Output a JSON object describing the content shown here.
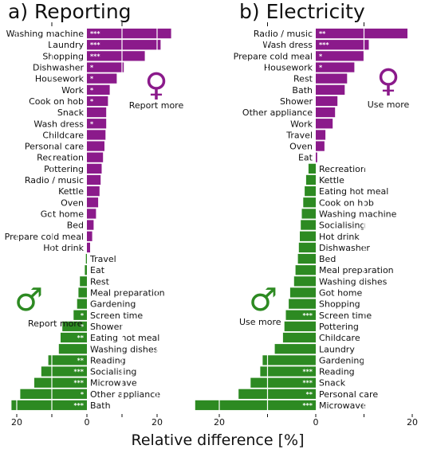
{
  "x_label": "Relative difference [%]",
  "colors": {
    "female": "#8b1a8b",
    "male": "#2d8a22"
  },
  "icons": {
    "female": "female-symbol-icon",
    "male": "male-symbol-icon"
  },
  "chart_data": [
    {
      "type": "bar",
      "title": "a) Reporting",
      "xlabel": "Relative difference [%]",
      "xlim": [
        -22,
        26
      ],
      "ticks": [
        20,
        0,
        20
      ],
      "female_label": "Report more",
      "male_label": "Report more",
      "female": [
        {
          "label": "Washing machine",
          "value": 24.0,
          "sig": "***"
        },
        {
          "label": "Laundry",
          "value": 21.0,
          "sig": "***"
        },
        {
          "label": "Shopping",
          "value": 16.5,
          "sig": "***"
        },
        {
          "label": "Dishwasher",
          "value": 10.5,
          "sig": "*"
        },
        {
          "label": "Housework",
          "value": 8.5,
          "sig": "*"
        },
        {
          "label": "Work",
          "value": 6.5,
          "sig": "*"
        },
        {
          "label": "Cook on hob",
          "value": 6.0,
          "sig": "*"
        },
        {
          "label": "Snack",
          "value": 5.5,
          "sig": ""
        },
        {
          "label": "Wash dress",
          "value": 5.5,
          "sig": "*"
        },
        {
          "label": "Childcare",
          "value": 5.3,
          "sig": ""
        },
        {
          "label": "Personal care",
          "value": 5.0,
          "sig": ""
        },
        {
          "label": "Recreation",
          "value": 4.6,
          "sig": ""
        },
        {
          "label": "Pottering",
          "value": 4.2,
          "sig": ""
        },
        {
          "label": "Radio / music",
          "value": 3.9,
          "sig": ""
        },
        {
          "label": "Kettle",
          "value": 3.6,
          "sig": ""
        },
        {
          "label": "Oven",
          "value": 3.2,
          "sig": ""
        },
        {
          "label": "Got home",
          "value": 2.6,
          "sig": ""
        },
        {
          "label": "Bed",
          "value": 1.9,
          "sig": ""
        },
        {
          "label": "Prepare cold meal",
          "value": 1.5,
          "sig": ""
        },
        {
          "label": "Hot drink",
          "value": 0.9,
          "sig": ""
        }
      ],
      "male": [
        {
          "label": "Travel",
          "value": 0.3,
          "sig": ""
        },
        {
          "label": "Eat",
          "value": 0.6,
          "sig": ""
        },
        {
          "label": "Rest",
          "value": 2.0,
          "sig": ""
        },
        {
          "label": "Meal preparation",
          "value": 2.4,
          "sig": ""
        },
        {
          "label": "Gardening",
          "value": 2.8,
          "sig": ""
        },
        {
          "label": "Screen time",
          "value": 3.8,
          "sig": "*"
        },
        {
          "label": "Shower",
          "value": 7.0,
          "sig": "*"
        },
        {
          "label": "Eating hot meal",
          "value": 7.5,
          "sig": "**"
        },
        {
          "label": "Washing dishes",
          "value": 8.0,
          "sig": ""
        },
        {
          "label": "Reading",
          "value": 11.0,
          "sig": "**"
        },
        {
          "label": "Socialising",
          "value": 13.0,
          "sig": "***"
        },
        {
          "label": "Microwave",
          "value": 15.0,
          "sig": "***"
        },
        {
          "label": "Other appliance",
          "value": 19.0,
          "sig": "*"
        },
        {
          "label": "Bath",
          "value": 21.5,
          "sig": "***"
        }
      ]
    },
    {
      "type": "bar",
      "title": "b) Electricity",
      "xlabel": "Relative difference [%]",
      "xlim": [
        -26,
        23
      ],
      "ticks": [
        20,
        0,
        20
      ],
      "female_label": "Use more",
      "male_label": "Use more",
      "female": [
        {
          "label": "Radio / music",
          "value": 19.0,
          "sig": "**"
        },
        {
          "label": "Wash dress",
          "value": 11.0,
          "sig": "***"
        },
        {
          "label": "Prepare cold meal",
          "value": 10.0,
          "sig": "*"
        },
        {
          "label": "Housework",
          "value": 8.0,
          "sig": "*"
        },
        {
          "label": "Rest",
          "value": 6.5,
          "sig": ""
        },
        {
          "label": "Bath",
          "value": 6.0,
          "sig": ""
        },
        {
          "label": "Shower",
          "value": 4.5,
          "sig": ""
        },
        {
          "label": "Other appliance",
          "value": 4.0,
          "sig": ""
        },
        {
          "label": "Work",
          "value": 3.5,
          "sig": ""
        },
        {
          "label": "Travel",
          "value": 2.0,
          "sig": ""
        },
        {
          "label": "Oven",
          "value": 1.8,
          "sig": ""
        },
        {
          "label": "Eat",
          "value": 0.3,
          "sig": ""
        }
      ],
      "male": [
        {
          "label": "Recreation",
          "value": 1.5,
          "sig": ""
        },
        {
          "label": "Kettle",
          "value": 2.0,
          "sig": ""
        },
        {
          "label": "Eating hot meal",
          "value": 2.3,
          "sig": ""
        },
        {
          "label": "Cook on hob",
          "value": 2.6,
          "sig": ""
        },
        {
          "label": "Washing machine",
          "value": 2.9,
          "sig": ""
        },
        {
          "label": "Socialising",
          "value": 3.1,
          "sig": ""
        },
        {
          "label": "Hot drink",
          "value": 3.3,
          "sig": ""
        },
        {
          "label": "Dishwasher",
          "value": 3.5,
          "sig": ""
        },
        {
          "label": "Bed",
          "value": 3.7,
          "sig": ""
        },
        {
          "label": "Meal preparation",
          "value": 4.2,
          "sig": ""
        },
        {
          "label": "Washing dishes",
          "value": 4.5,
          "sig": ""
        },
        {
          "label": "Got home",
          "value": 5.3,
          "sig": ""
        },
        {
          "label": "Shopping",
          "value": 5.6,
          "sig": ""
        },
        {
          "label": "Screen time",
          "value": 6.2,
          "sig": "***"
        },
        {
          "label": "Pottering",
          "value": 6.5,
          "sig": ""
        },
        {
          "label": "Childcare",
          "value": 6.8,
          "sig": ""
        },
        {
          "label": "Laundry",
          "value": 8.5,
          "sig": ""
        },
        {
          "label": "Gardening",
          "value": 11.0,
          "sig": ""
        },
        {
          "label": "Reading",
          "value": 11.5,
          "sig": "***"
        },
        {
          "label": "Snack",
          "value": 13.5,
          "sig": "***"
        },
        {
          "label": "Personal care",
          "value": 16.0,
          "sig": "**"
        },
        {
          "label": "Microwave",
          "value": 25.0,
          "sig": "***"
        }
      ]
    }
  ]
}
